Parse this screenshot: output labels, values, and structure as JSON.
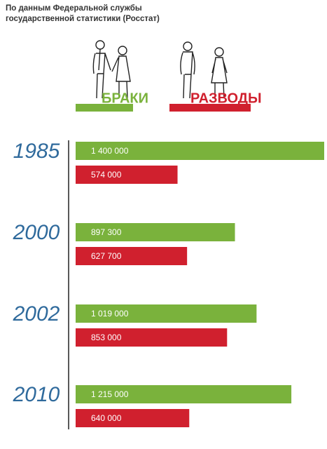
{
  "chart_data": {
    "type": "bar",
    "orientation": "horizontal",
    "title": [
      "По данным Федеральной службы",
      "государственной статистики (Росстат)"
    ],
    "categories": [
      "1985",
      "2000",
      "2002",
      "2010"
    ],
    "series": [
      {
        "name": "БРАКИ",
        "color": "#7ab23c",
        "values": [
          1400000,
          897300,
          1019000,
          1215000
        ],
        "value_labels": [
          "1 400 000",
          "897 300",
          "1 019 000",
          "1 215 000"
        ]
      },
      {
        "name": "РАЗВОДЫ",
        "color": "#d0202e",
        "values": [
          574000,
          627700,
          853000,
          640000
        ],
        "value_labels": [
          "574 000",
          "627 700",
          "853 000",
          "640 000"
        ]
      }
    ],
    "xlim": [
      0,
      1400000
    ]
  }
}
